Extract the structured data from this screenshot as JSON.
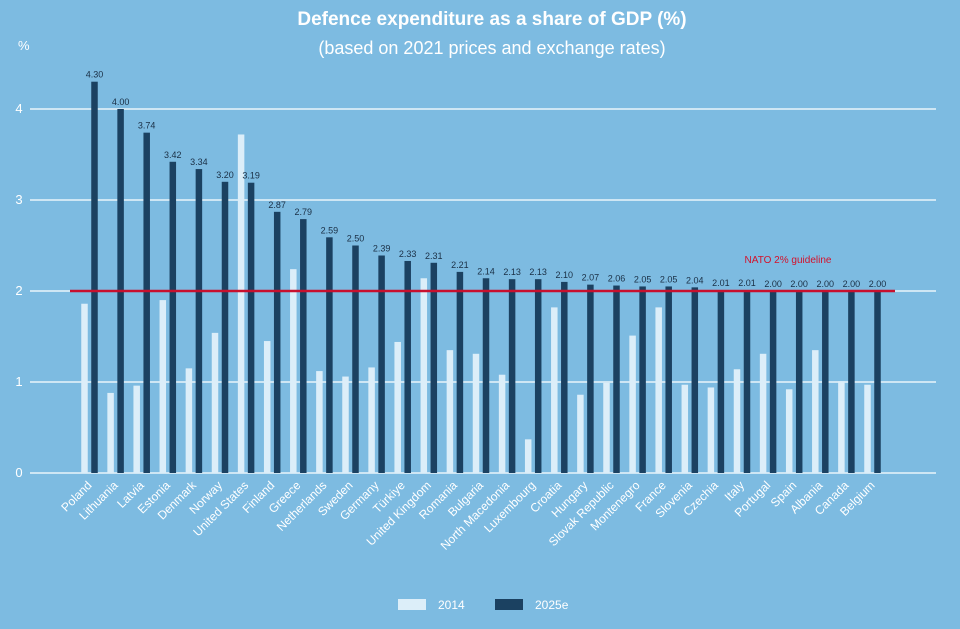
{
  "colors": {
    "background": "#7DBBE1",
    "series_2014": "#DCEEF9",
    "series_2025e": "#1B4161",
    "gridline": "#ffffff",
    "reference_line": "#C8102E",
    "text": "#ffffff",
    "data_label": "#1a2f45"
  },
  "chart_data": {
    "type": "bar",
    "title": "Defence expenditure as a share of GDP (%)",
    "subtitle": "(based on 2021 prices and exchange rates)",
    "ylabel": "%",
    "xlabel": "",
    "ylim": [
      0,
      4.4
    ],
    "yticks": [
      0,
      1,
      2,
      3,
      4
    ],
    "grid": true,
    "legend_position": "bottom-center",
    "categories": [
      "Poland",
      "Lithuania",
      "Latvia",
      "Estonia",
      "Denmark",
      "Norway",
      "United States",
      "Finland",
      "Greece",
      "Netherlands",
      "Sweden",
      "Germany",
      "Türkiye",
      "United Kingdom",
      "Romania",
      "Bulgaria",
      "North Macedonia",
      "Luxembourg",
      "Croatia",
      "Hungary",
      "Slovak Republic",
      "Montenegro",
      "France",
      "Slovenia",
      "Czechia",
      "Italy",
      "Portugal",
      "Spain",
      "Albania",
      "Canada",
      "Belgium"
    ],
    "series": [
      {
        "name": "2014",
        "values": [
          1.86,
          0.88,
          0.96,
          1.9,
          1.15,
          1.54,
          3.72,
          1.45,
          2.24,
          1.12,
          1.06,
          1.16,
          1.44,
          2.14,
          1.35,
          1.31,
          1.08,
          0.37,
          1.82,
          0.86,
          0.99,
          1.51,
          1.82,
          0.97,
          0.94,
          1.14,
          1.31,
          0.92,
          1.35,
          1.01,
          0.97
        ]
      },
      {
        "name": "2025e",
        "values": [
          4.3,
          4.0,
          3.74,
          3.42,
          3.34,
          3.2,
          3.19,
          2.87,
          2.79,
          2.59,
          2.5,
          2.39,
          2.33,
          2.31,
          2.21,
          2.14,
          2.13,
          2.13,
          2.1,
          2.07,
          2.06,
          2.05,
          2.05,
          2.04,
          2.01,
          2.01,
          2.0,
          2.0,
          2.0,
          2.0,
          2.0
        ],
        "labels": [
          "4.30",
          "4.00",
          "3.74",
          "3.42",
          "3.34",
          "3.20",
          "3.19",
          "2.87",
          "2.79",
          "2.59",
          "2.50",
          "2.39",
          "2.33",
          "2.31",
          "2.21",
          "2.14",
          "2.13",
          "2.13",
          "2.10",
          "2.07",
          "2.06",
          "2.05",
          "2.05",
          "2.04",
          "2.01",
          "2.01",
          "2.00",
          "2.00",
          "2.00",
          "2.00",
          "2.00"
        ]
      }
    ],
    "reference_line": {
      "value": 2,
      "label": "NATO 2% guideline"
    },
    "legend": [
      {
        "name": "2014",
        "series": "2014"
      },
      {
        "name": "2025e",
        "series": "2025e"
      }
    ]
  }
}
